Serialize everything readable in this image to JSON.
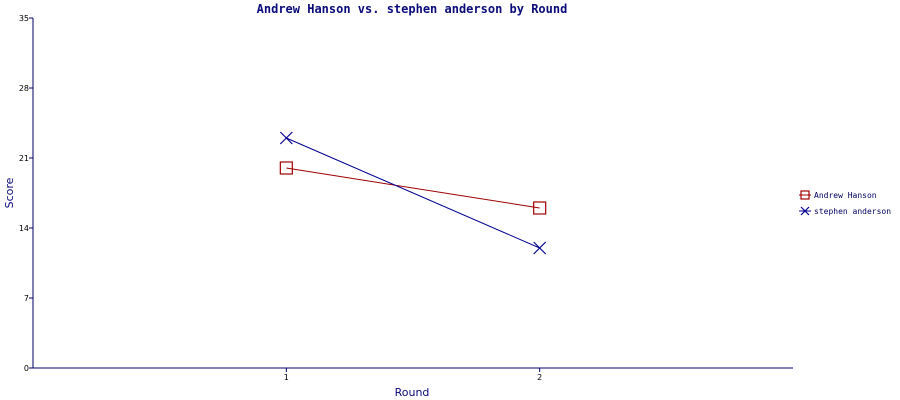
{
  "colors": {
    "axis": "#000066",
    "title": "#0a0a7a",
    "series_1": "#a00000",
    "series_2": "#000090"
  },
  "chart_data": {
    "type": "line",
    "title": "Andrew Hanson vs. stephen anderson by Round",
    "xlabel": "Round",
    "ylabel": "Score",
    "x": [
      1,
      2
    ],
    "x_ticks": [
      "1",
      "2"
    ],
    "ylim": [
      0,
      35
    ],
    "y_ticks": [
      "0",
      "7",
      "14",
      "21",
      "28",
      "35"
    ],
    "grid": false,
    "legend_position": "right",
    "series": [
      {
        "name": "Andrew Hanson",
        "values": [
          20,
          16
        ],
        "marker": "square",
        "color": "#a00000"
      },
      {
        "name": "stephen anderson",
        "values": [
          23,
          12
        ],
        "marker": "x",
        "color": "#000090"
      }
    ]
  }
}
